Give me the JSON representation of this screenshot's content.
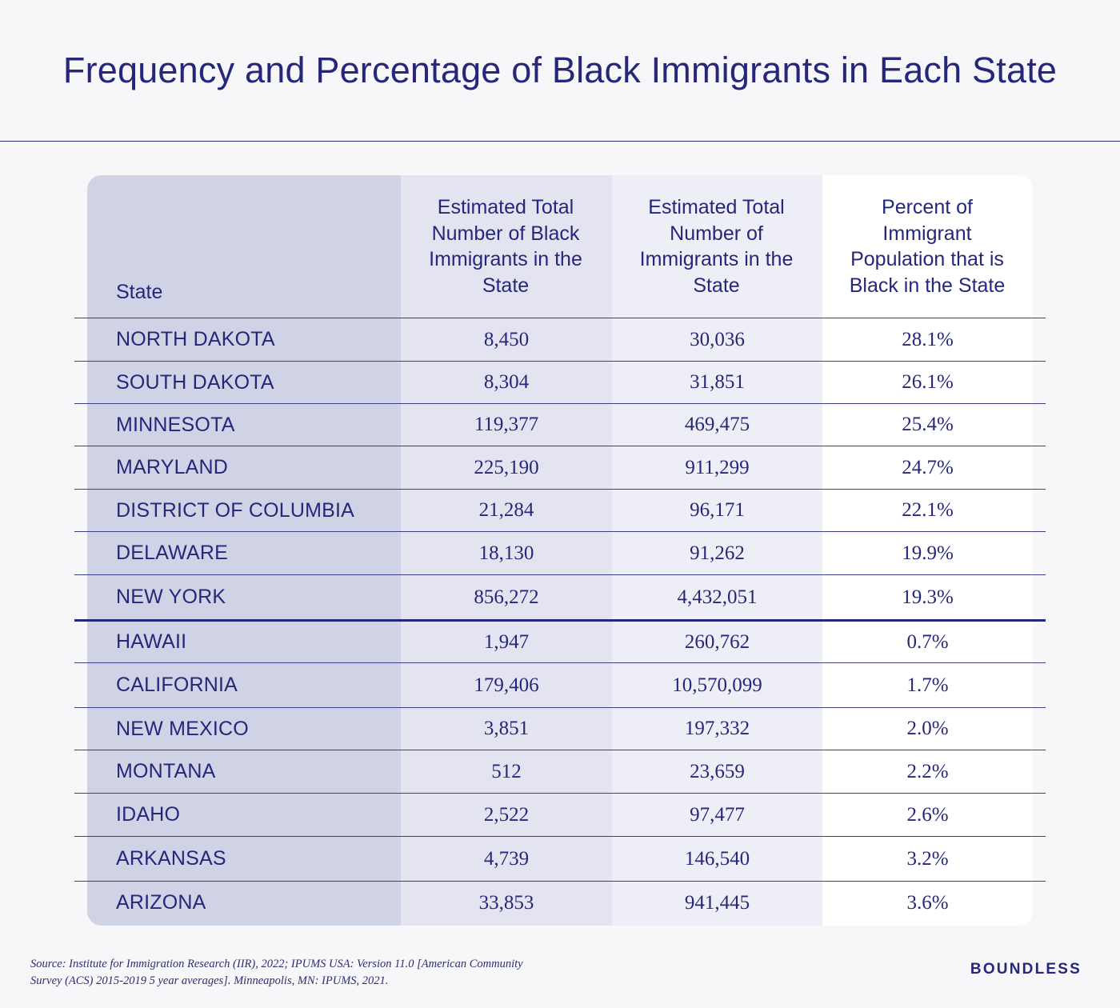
{
  "title": "Frequency and Percentage of Black Immigrants in Each State",
  "table": {
    "headers": [
      "State",
      "Estimated Total Number of Black Immigrants in the State",
      "Estimated Total Number of Immigrants in the State",
      "Percent of Immigrant Population that is Black in the State"
    ],
    "rows": [
      [
        "NORTH DAKOTA",
        "8,450",
        "30,036",
        "28.1%"
      ],
      [
        "SOUTH DAKOTA",
        "8,304",
        "31,851",
        "26.1%"
      ],
      [
        "MINNESOTA",
        "119,377",
        "469,475",
        "25.4%"
      ],
      [
        "MARYLAND",
        "225,190",
        "911,299",
        "24.7%"
      ],
      [
        "DISTRICT OF COLUMBIA",
        "21,284",
        "96,171",
        "22.1%"
      ],
      [
        "DELAWARE",
        "18,130",
        "91,262",
        "19.9%"
      ],
      [
        "NEW YORK",
        "856,272",
        "4,432,051",
        "19.3%"
      ],
      [
        "HAWAII",
        "1,947",
        "260,762",
        "0.7%"
      ],
      [
        "CALIFORNIA",
        "179,406",
        "10,570,099",
        "1.7%"
      ],
      [
        "NEW MEXICO",
        "3,851",
        "197,332",
        "2.0%"
      ],
      [
        "MONTANA",
        "512",
        "23,659",
        "2.2%"
      ],
      [
        "IDAHO",
        "2,522",
        "97,477",
        "2.6%"
      ],
      [
        "ARKANSAS",
        "4,739",
        "146,540",
        "3.2%"
      ],
      [
        "ARIZONA",
        "33,853",
        "941,445",
        "3.6%"
      ]
    ]
  },
  "chart_data": {
    "type": "table",
    "title": "Frequency and Percentage of Black Immigrants in Each State",
    "columns": [
      "State",
      "Estimated Total Number of Black Immigrants in the State",
      "Estimated Total Number of Immigrants in the State",
      "Percent of Immigrant Population that is Black in the State"
    ],
    "rows": [
      [
        "NORTH DAKOTA",
        8450,
        30036,
        28.1
      ],
      [
        "SOUTH DAKOTA",
        8304,
        31851,
        26.1
      ],
      [
        "MINNESOTA",
        119377,
        469475,
        25.4
      ],
      [
        "MARYLAND",
        225190,
        911299,
        24.7
      ],
      [
        "DISTRICT OF COLUMBIA",
        21284,
        96171,
        22.1
      ],
      [
        "DELAWARE",
        18130,
        91262,
        19.9
      ],
      [
        "NEW YORK",
        856272,
        4432051,
        19.3
      ],
      [
        "HAWAII",
        1947,
        260762,
        0.7
      ],
      [
        "CALIFORNIA",
        179406,
        10570099,
        1.7
      ],
      [
        "NEW MEXICO",
        3851,
        197332,
        2.0
      ],
      [
        "MONTANA",
        512,
        23659,
        2.2
      ],
      [
        "IDAHO",
        2522,
        97477,
        2.6
      ],
      [
        "ARKANSAS",
        4739,
        146540,
        3.2
      ],
      [
        "ARIZONA",
        33853,
        941445,
        3.6
      ]
    ]
  },
  "source": "Source: Institute for Immigration Research (IIR), 2022; IPUMS USA: Version 11.0 [American Community Survey (ACS) 2015-2019 5 year averages]. Minneapolis, MN: IPUMS, 2021.",
  "brand": "BOUNDLESS",
  "colors": {
    "text": "#25287a",
    "state_column": "#d0d2e5",
    "col_black_immigrants": "#e3e4f0",
    "col_total_immigrants": "#eeeef6",
    "col_percent": "#ffffff",
    "background": "#f7f7fa"
  }
}
